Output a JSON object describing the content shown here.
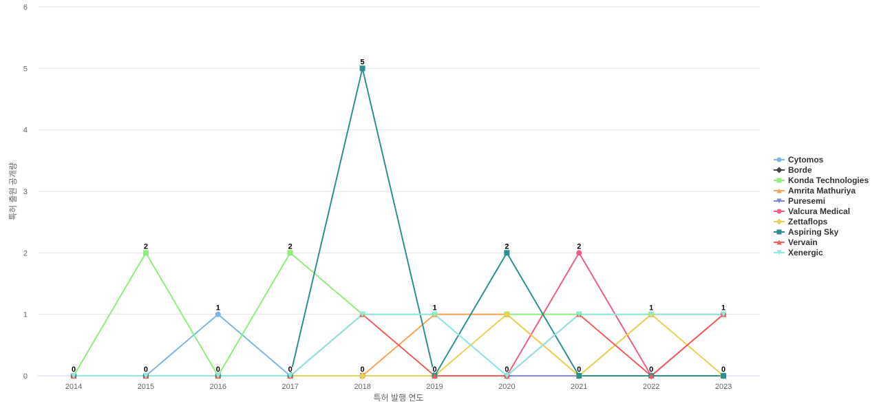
{
  "chart_data": {
    "type": "line",
    "xlabel": "특허 발행 연도",
    "ylabel": "특허 출원 공개량",
    "ylim": [
      0,
      6
    ],
    "yticks": [
      0,
      1,
      2,
      3,
      4,
      5,
      6
    ],
    "categories": [
      "2014",
      "2015",
      "2016",
      "2017",
      "2018",
      "2019",
      "2020",
      "2021",
      "2022",
      "2023"
    ],
    "grid": true,
    "legend_position": "right",
    "series": [
      {
        "name": "Cytomos",
        "color": "#7cb5ec",
        "marker": "circle",
        "values": [
          0,
          0,
          1,
          0,
          1,
          1,
          0,
          1,
          1,
          1
        ]
      },
      {
        "name": "Borde",
        "color": "#434348",
        "marker": "diamond",
        "values": [
          0,
          0,
          0,
          0,
          0,
          0,
          0,
          0,
          0,
          0
        ]
      },
      {
        "name": "Konda Technologies",
        "color": "#90ed7d",
        "marker": "square",
        "values": [
          0,
          2,
          0,
          2,
          1,
          1,
          1,
          1,
          1,
          1
        ]
      },
      {
        "name": "Amrita Mathuriya",
        "color": "#f7a35c",
        "marker": "triangle",
        "values": [
          0,
          0,
          0,
          0,
          0,
          1,
          1,
          0,
          1,
          1
        ]
      },
      {
        "name": "Puresemi",
        "color": "#8085e9",
        "marker": "triangle-down",
        "values": [
          0,
          0,
          0,
          0,
          0,
          0,
          0,
          0,
          0,
          0
        ]
      },
      {
        "name": "Valcura Medical",
        "color": "#f15c80",
        "marker": "circle",
        "values": [
          0,
          0,
          0,
          0,
          0,
          0,
          0,
          2,
          0,
          1
        ]
      },
      {
        "name": "Zettaflops",
        "color": "#e4d354",
        "marker": "diamond",
        "values": [
          0,
          0,
          0,
          0,
          0,
          0,
          1,
          0,
          1,
          0
        ]
      },
      {
        "name": "Aspiring Sky",
        "color": "#2b908f",
        "marker": "square",
        "values": [
          0,
          0,
          0,
          0,
          5,
          0,
          2,
          0,
          0,
          0
        ]
      },
      {
        "name": "Vervain",
        "color": "#f45b5b",
        "marker": "triangle",
        "values": [
          0,
          0,
          0,
          0,
          1,
          0,
          0,
          1,
          0,
          1
        ]
      },
      {
        "name": "Xenergic",
        "color": "#91e8e1",
        "marker": "triangle-down",
        "values": [
          0,
          0,
          0,
          0,
          1,
          1,
          0,
          1,
          1,
          1
        ]
      }
    ],
    "data_labels": [
      0,
      2,
      1,
      2,
      5,
      1,
      2,
      2,
      1,
      1
    ],
    "data_labels_low": [
      0,
      0,
      0,
      0,
      0,
      0,
      0,
      0,
      0,
      0
    ]
  }
}
